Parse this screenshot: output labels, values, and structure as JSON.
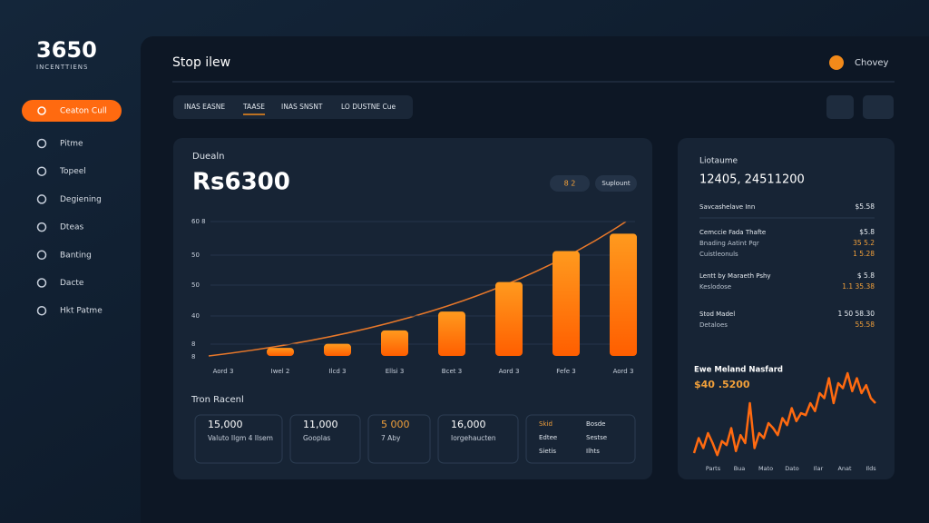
{
  "sidebar": {
    "logo": "3650",
    "tagline": "INCENTTIENS",
    "button": "Ceaton Cull",
    "nav": [
      "Pitme",
      "Topeel",
      "Degiening",
      "Dteas",
      "Banting",
      "Dacte",
      "Hkt Patme"
    ]
  },
  "header": {
    "title": "Stop ilew",
    "user": "Chovey"
  },
  "tabs": [
    "INAS EASNE",
    "TAASE",
    "INAS SNSNT",
    "LO DUSTNE Cue"
  ],
  "main_card": {
    "label": "Duealn",
    "value": "Rs6300",
    "toggle": "8 2",
    "button": "Suplount",
    "y_labels": [
      "60 8",
      "50",
      "50",
      "40",
      "8"
    ],
    "x_labels": [
      "Aord 3",
      "Iwel 2",
      "Ilcd 3",
      "Ellsi 3",
      "Bcet 3",
      "Aord 3",
      "Fefe 3",
      "Aord 3"
    ],
    "bars": [
      null,
      6,
      9,
      19,
      33,
      55,
      78,
      91
    ]
  },
  "stats": {
    "title": "Tron Racenl",
    "cards": [
      {
        "value": "15,000",
        "label": "Valuto Ilgm 4 Ilsem"
      },
      {
        "value": "11,000",
        "label": "Gooplas"
      },
      {
        "value": "5 000",
        "label": "7 Aby"
      },
      {
        "value": "16,000",
        "label": "Iorgehaucten"
      }
    ],
    "table": [
      [
        "Skid",
        "Bosde"
      ],
      [
        "Edtee",
        "Sestse"
      ],
      [
        "Sietis",
        "Ilhts"
      ]
    ]
  },
  "side_card": {
    "label": "Liotaume",
    "value": "12405, 24511200",
    "rows": [
      {
        "lines": [
          "Savcashelave Inn"
        ],
        "values": [
          "$5.58"
        ]
      },
      {
        "lines": [
          "Cemccie Fada Thafte",
          "Bnading Aatint Pqr",
          "Cuistleonuls"
        ],
        "values": [
          "$5.8",
          "35 5.2",
          "1 5.28"
        ]
      },
      {
        "lines": [
          "Lentt by Maraeth Pshy",
          "Keslodose"
        ],
        "values": [
          "$ 5.8",
          "1.1 35.38"
        ]
      },
      {
        "lines": [
          "Stod Madel",
          "Detaloes"
        ],
        "values": [
          "1 50 58.30",
          "55.58"
        ]
      }
    ]
  },
  "trend": {
    "title": "Ewe Meland Nasfard",
    "value": "$40 .5200",
    "values": [
      10,
      25,
      15,
      30,
      20,
      8,
      22,
      18,
      35,
      12,
      28,
      20,
      60,
      15,
      30,
      25,
      40,
      35,
      28,
      45,
      38,
      55,
      42,
      50,
      48,
      60,
      52,
      70,
      65,
      85,
      60,
      80,
      75,
      90,
      72,
      85,
      70,
      78,
      65,
      60
    ],
    "x_labels": [
      "Parts",
      "Bua",
      "Mato",
      "Dato",
      "Ilar",
      "Anat",
      "Ilds"
    ]
  }
}
